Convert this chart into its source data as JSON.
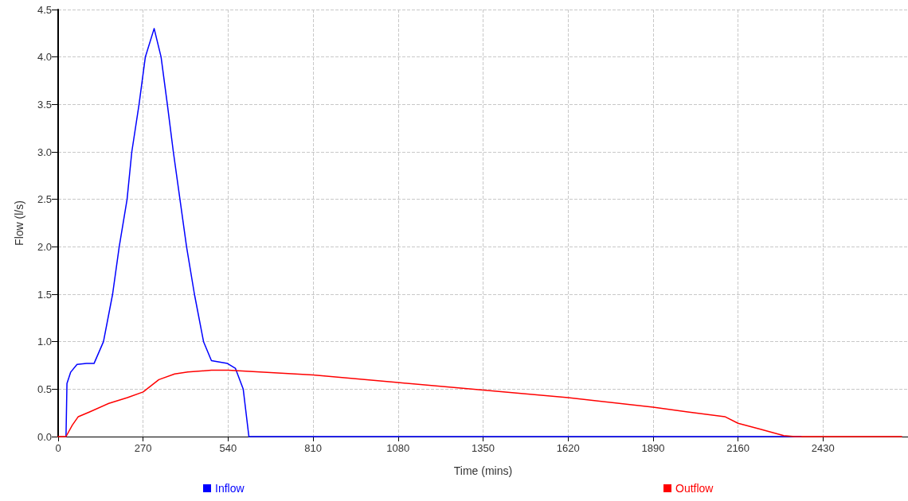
{
  "chart_data": {
    "type": "line",
    "xlabel": "Time (mins)",
    "ylabel": "Flow (l/s)",
    "xlim": [
      0,
      2700
    ],
    "xticks": [
      0,
      270,
      540,
      810,
      1080,
      1350,
      1620,
      1890,
      2160,
      2430
    ],
    "ylim": [
      0,
      4.5
    ],
    "yticks": [
      {
        "value": 0,
        "label": "0.0"
      },
      0.5,
      {
        "value": 1,
        "label": "1.0"
      },
      1.5,
      {
        "value": 2,
        "label": "2.0"
      },
      2.5,
      {
        "value": 3,
        "label": "3.0"
      },
      3.5,
      {
        "value": 4,
        "label": "4.0"
      },
      4.5
    ],
    "grid": true,
    "legend": "bottom",
    "marker": "none",
    "line_style": "solid",
    "series": [
      {
        "name": "Inflow",
        "color": "#0000ff",
        "x": [
          25,
          28,
          40,
          60,
          90,
          114,
          144,
          173,
          194,
          219,
          234,
          257,
          277,
          305,
          327,
          347,
          366,
          387,
          408,
          433,
          462,
          487,
          538,
          563,
          588,
          606,
          2360
        ],
        "values": [
          0,
          0.56,
          0.68,
          0.76,
          0.77,
          0.77,
          1.0,
          1.5,
          2.0,
          2.5,
          3.0,
          3.5,
          4.0,
          4.3,
          4.0,
          3.5,
          3.0,
          2.5,
          2.0,
          1.5,
          1.0,
          0.8,
          0.77,
          0.72,
          0.5,
          0,
          0
        ]
      },
      {
        "name": "Outflow",
        "color": "#ff0000",
        "x": [
          0,
          25,
          45,
          64,
          100,
          161,
          220,
          270,
          320,
          370,
          412,
          487,
          540,
          810,
          1080,
          1350,
          1620,
          1890,
          2000,
          2118,
          2160,
          2229,
          2305,
          2340,
          2680
        ],
        "values": [
          0,
          0,
          0.12,
          0.21,
          0.26,
          0.35,
          0.41,
          0.47,
          0.6,
          0.66,
          0.68,
          0.7,
          0.7,
          0.65,
          0.57,
          0.49,
          0.41,
          0.31,
          0.26,
          0.21,
          0.14,
          0.08,
          0.01,
          0,
          0
        ]
      }
    ]
  }
}
